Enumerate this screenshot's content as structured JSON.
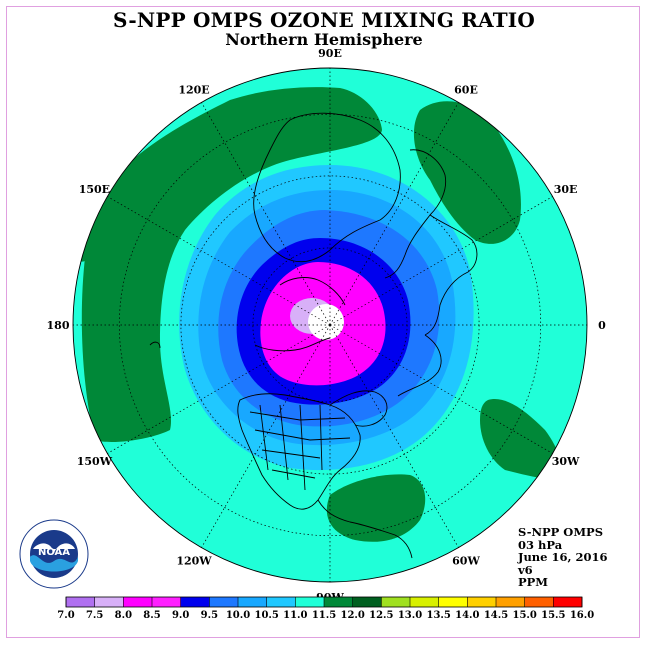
{
  "header": {
    "title": "S-NPP OMPS OZONE MIXING RATIO",
    "subtitle": "Northern Hemisphere"
  },
  "map": {
    "projection": "polar-stereographic",
    "hemisphere": "north",
    "longitude_labels": [
      {
        "lon": 90,
        "text": "90E"
      },
      {
        "lon": 60,
        "text": "60E"
      },
      {
        "lon": 30,
        "text": "30E"
      },
      {
        "lon": 0,
        "text": "0"
      },
      {
        "lon": -30,
        "text": "30W"
      },
      {
        "lon": -60,
        "text": "60W"
      },
      {
        "lon": -90,
        "text": "90W"
      },
      {
        "lon": -120,
        "text": "120W"
      },
      {
        "lon": -150,
        "text": "150W"
      },
      {
        "lon": 180,
        "text": "180"
      },
      {
        "lon": 150,
        "text": "150E"
      },
      {
        "lon": 120,
        "text": "120E"
      }
    ]
  },
  "info": {
    "lines": [
      "S-NPP OMPS",
      "03 hPa",
      "June 16, 2016",
      "v6",
      "PPM"
    ]
  },
  "logo": {
    "text": "NOAA",
    "ring_text": "NATIONAL OCEANIC AND ATMOSPHERIC ADMINISTRATION · U.S. DEPARTMENT OF COMMERCE",
    "icon": "noaa-logo"
  },
  "colorbar": {
    "ticks": [
      "7.0",
      "7.5",
      "8.0",
      "8.5",
      "9.0",
      "9.5",
      "10.0",
      "10.5",
      "11.0",
      "11.5",
      "12.0",
      "12.5",
      "13.0",
      "13.5",
      "14.0",
      "14.5",
      "15.0",
      "15.5",
      "16.0"
    ],
    "colors": [
      "#b070f0",
      "#d8b0f8",
      "#ff00ff",
      "#ff20ff",
      "#0000ee",
      "#1e78ff",
      "#18a8ff",
      "#20c8ff",
      "#20ffd8",
      "#008838",
      "#006020",
      "#a0e020",
      "#d8f000",
      "#ffff00",
      "#ffd000",
      "#ffa000",
      "#ff6000",
      "#ff0000",
      "#a06040"
    ]
  }
}
